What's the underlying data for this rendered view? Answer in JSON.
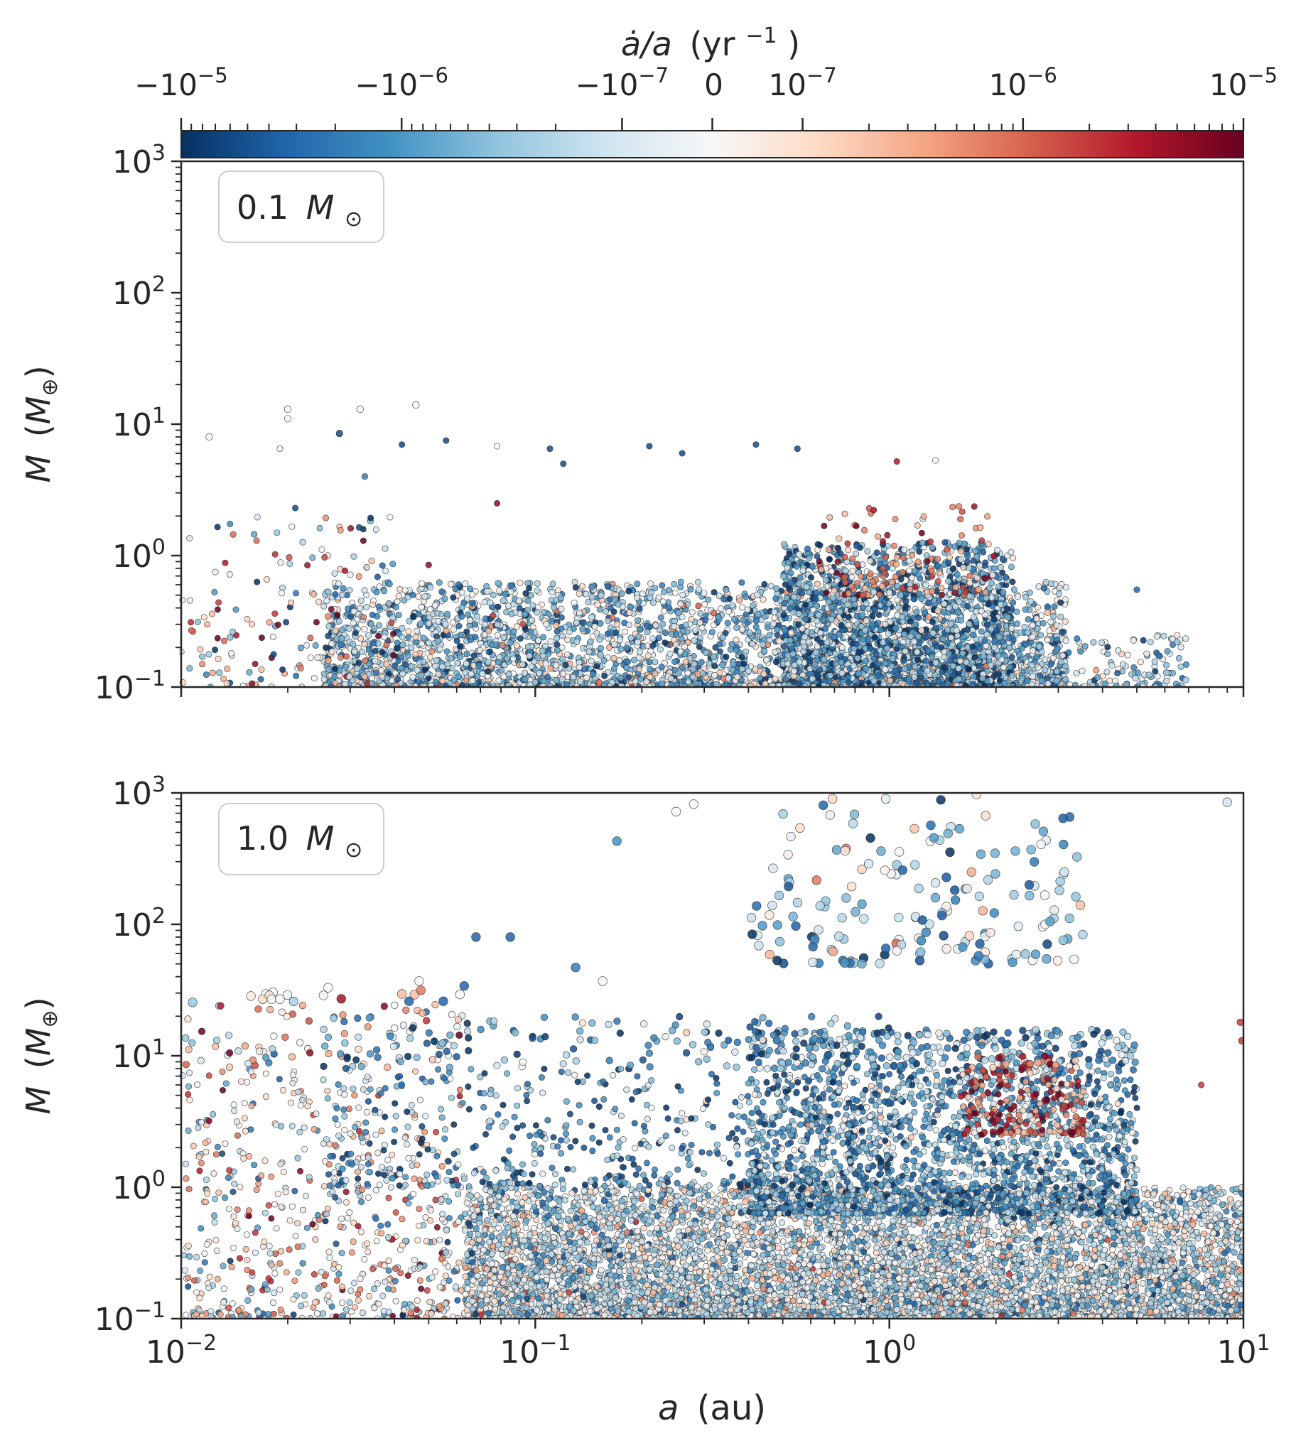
{
  "colorbar": {
    "label_main": "ȧ/a",
    "label_unit": "(yr",
    "label_exp": "−1",
    "label_close": ")",
    "cmap": [
      "#053061",
      "#2166ac",
      "#4393c3",
      "#92c5de",
      "#d1e5f0",
      "#f7f7f7",
      "#fddbc7",
      "#f4a582",
      "#d6604d",
      "#b2182b",
      "#67001f"
    ],
    "ticks": [
      {
        "value": -1e-05,
        "base": "−10",
        "exp": "−5"
      },
      {
        "value": -1e-06,
        "base": "−10",
        "exp": "−6"
      },
      {
        "value": -1e-07,
        "base": "−10",
        "exp": "−7"
      },
      {
        "value": 0,
        "base": "0",
        "exp": ""
      },
      {
        "value": 1e-07,
        "base": "10",
        "exp": "−7"
      },
      {
        "value": 1e-06,
        "base": "10",
        "exp": "−6"
      },
      {
        "value": 1e-05,
        "base": "10",
        "exp": "−5"
      }
    ],
    "linthresh": 1e-07,
    "vmin": -1e-05,
    "vmax": 1e-05
  },
  "chart_data": [
    {
      "type": "scatter",
      "panel_label": "0.1",
      "panel_unit": "M",
      "panel_unit_sub": "⊙",
      "xscale": "log",
      "yscale": "log",
      "xlim": [
        0.01,
        10
      ],
      "ylim": [
        0.1,
        1000
      ],
      "ylabel_main": "M",
      "ylabel_unit": "M",
      "ylabel_sub": "⊕",
      "xlabel_main": "",
      "xlabel_unit": "",
      "clusters": [
        {
          "name": "main-body",
          "n": 3200,
          "logx": [
            -1.6,
            0.5
          ],
          "logy": [
            -1.0,
            -0.2
          ],
          "c_mean": -0.35,
          "c_spread": 0.35
        },
        {
          "name": "hump-1au",
          "n": 1600,
          "logx": [
            -0.3,
            0.35
          ],
          "logy": [
            -1.0,
            0.1
          ],
          "c_mean": -0.55,
          "c_spread": 0.35
        },
        {
          "name": "hump-red",
          "n": 120,
          "logx": [
            -0.2,
            0.3
          ],
          "logy": [
            -0.3,
            0.4
          ],
          "c_mean": 0.55,
          "c_spread": 0.3
        },
        {
          "name": "inner-sparse",
          "n": 170,
          "logx": [
            -2.0,
            -1.4
          ],
          "logy": [
            -1.0,
            0.3
          ],
          "c_mean": 0.0,
          "c_spread": 0.7
        },
        {
          "name": "outer-tail",
          "n": 160,
          "logx": [
            0.4,
            0.85
          ],
          "logy": [
            -1.0,
            -0.6
          ],
          "c_mean": -0.3,
          "c_spread": 0.3
        }
      ],
      "points": [
        {
          "x": 0.02,
          "y": 13.0,
          "c": 0.0
        },
        {
          "x": 0.02,
          "y": 11.0,
          "c": 0.0
        },
        {
          "x": 0.032,
          "y": 13.0,
          "c": 0.0
        },
        {
          "x": 0.046,
          "y": 14.0,
          "c": 0.0
        },
        {
          "x": 0.012,
          "y": 8.0,
          "c": 0.0
        },
        {
          "x": 0.019,
          "y": 6.5,
          "c": 0.0
        },
        {
          "x": 0.028,
          "y": 8.5,
          "c": -0.9
        },
        {
          "x": 0.042,
          "y": 7.0,
          "c": -0.9
        },
        {
          "x": 0.056,
          "y": 7.5,
          "c": -0.9
        },
        {
          "x": 0.078,
          "y": 6.8,
          "c": 0.0
        },
        {
          "x": 0.11,
          "y": 6.5,
          "c": -0.9
        },
        {
          "x": 0.21,
          "y": 6.8,
          "c": -0.9
        },
        {
          "x": 0.26,
          "y": 6.0,
          "c": -0.9
        },
        {
          "x": 0.42,
          "y": 7.0,
          "c": -0.9
        },
        {
          "x": 0.55,
          "y": 6.5,
          "c": -0.9
        },
        {
          "x": 0.12,
          "y": 5.0,
          "c": -0.9
        },
        {
          "x": 0.078,
          "y": 2.5,
          "c": 0.9
        },
        {
          "x": 0.021,
          "y": 2.3,
          "c": -0.9
        },
        {
          "x": 1.05,
          "y": 5.2,
          "c": 0.8
        },
        {
          "x": 1.35,
          "y": 5.3,
          "c": 0.0
        },
        {
          "x": 5.0,
          "y": 0.55,
          "c": -0.8
        },
        {
          "x": 6.5,
          "y": 0.22,
          "c": -0.4
        },
        {
          "x": 0.033,
          "y": 4.0,
          "c": -0.7
        },
        {
          "x": 0.05,
          "y": 0.85,
          "c": 0.9
        }
      ]
    },
    {
      "type": "scatter",
      "panel_label": "1.0",
      "panel_unit": "M",
      "panel_unit_sub": "⊙",
      "xscale": "log",
      "yscale": "log",
      "xlim": [
        0.01,
        10
      ],
      "ylim": [
        0.1,
        1000
      ],
      "xticks": [
        {
          "value": 0.01,
          "base": "10",
          "exp": "−2"
        },
        {
          "value": 0.1,
          "base": "10",
          "exp": "−1"
        },
        {
          "value": 1,
          "base": "10",
          "exp": "0"
        },
        {
          "value": 10,
          "base": "10",
          "exp": "1"
        }
      ],
      "ylabel_main": "M",
      "ylabel_unit": "M",
      "ylabel_sub": "⊕",
      "xlabel_main": "a",
      "xlabel_unit": "(au)",
      "clusters": [
        {
          "name": "main-body",
          "n": 7000,
          "logx": [
            -1.2,
            1.0
          ],
          "logy": [
            -1.0,
            0.0
          ],
          "c_mean": -0.2,
          "c_spread": 0.3
        },
        {
          "name": "upper-band",
          "n": 2200,
          "logx": [
            -0.4,
            0.7
          ],
          "logy": [
            -0.2,
            1.2
          ],
          "c_mean": -0.55,
          "c_spread": 0.3
        },
        {
          "name": "red-cluster",
          "n": 220,
          "logx": [
            0.2,
            0.55
          ],
          "logy": [
            0.4,
            1.0
          ],
          "c_mean": 0.6,
          "c_spread": 0.3
        },
        {
          "name": "inner-white",
          "n": 700,
          "logx": [
            -2.0,
            -1.2
          ],
          "logy": [
            -1.0,
            1.5
          ],
          "c_mean": 0.05,
          "c_spread": 0.45
        },
        {
          "name": "diagonal-band",
          "n": 700,
          "logx": [
            -1.6,
            0.0
          ],
          "logy": [
            0.0,
            1.3
          ],
          "c_mean": -0.6,
          "c_spread": 0.35
        },
        {
          "name": "giants",
          "n": 180,
          "logx": [
            -0.4,
            0.55
          ],
          "logy": [
            1.7,
            3.0
          ],
          "c_mean": -0.35,
          "c_spread": 0.35
        }
      ],
      "points": [
        {
          "x": 0.068,
          "y": 80,
          "c": -0.8
        },
        {
          "x": 0.085,
          "y": 80,
          "c": -0.8
        },
        {
          "x": 0.17,
          "y": 430,
          "c": -0.6
        },
        {
          "x": 0.25,
          "y": 720,
          "c": 0.0
        },
        {
          "x": 0.28,
          "y": 820,
          "c": 0.0
        },
        {
          "x": 9.0,
          "y": 850,
          "c": -0.2
        },
        {
          "x": 9.8,
          "y": 18,
          "c": 0.7
        },
        {
          "x": 9.9,
          "y": 13,
          "c": 0.7
        },
        {
          "x": 7.6,
          "y": 6.0,
          "c": 0.7
        },
        {
          "x": 0.018,
          "y": 27,
          "c": 0.0
        },
        {
          "x": 0.019,
          "y": 27,
          "c": 0.0
        },
        {
          "x": 0.026,
          "y": 33,
          "c": 0.0
        },
        {
          "x": 0.047,
          "y": 37,
          "c": 0.0
        },
        {
          "x": 0.044,
          "y": 26,
          "c": -0.8
        },
        {
          "x": 0.055,
          "y": 26,
          "c": -0.8
        },
        {
          "x": 0.063,
          "y": 34,
          "c": -0.8
        },
        {
          "x": 0.13,
          "y": 47,
          "c": -0.7
        },
        {
          "x": 0.155,
          "y": 37,
          "c": 0.0
        }
      ]
    }
  ]
}
